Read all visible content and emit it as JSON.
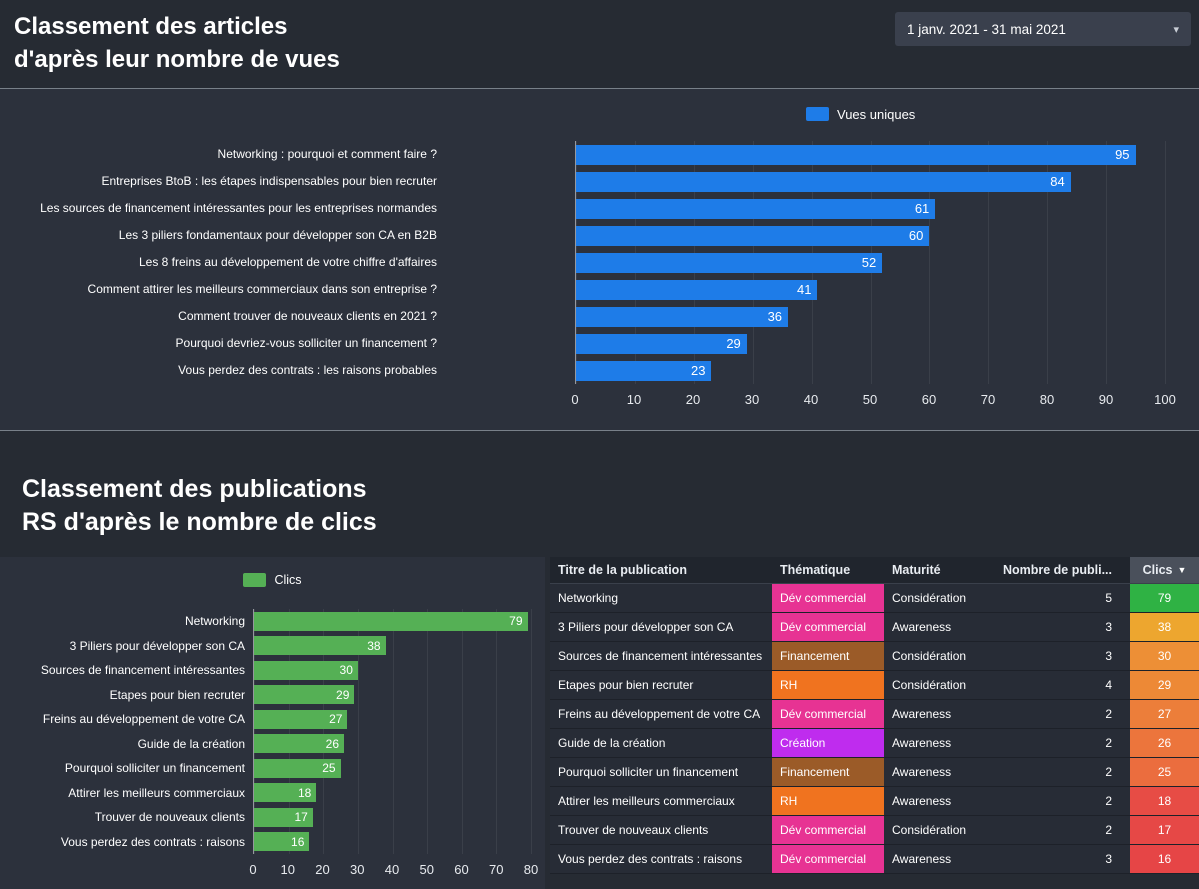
{
  "page": {
    "title_section1_line1": "Classement des articles",
    "title_section1_line2": "d'après leur nombre de vues",
    "title_section2_line1": "Classement des publications",
    "title_section2_line2": "RS d'après le nombre de clics",
    "date_range": "1 janv. 2021 - 31 mai 2021"
  },
  "colors": {
    "page_bg": "#262b33",
    "panel_bg": "#2c313c",
    "blue": "#1e7ce8",
    "green": "#55b055"
  },
  "chart_data": [
    {
      "type": "bar",
      "orientation": "horizontal",
      "title": "Classement des articles d'après leur nombre de vues",
      "legend": "Vues uniques",
      "legend_position": "top",
      "color": "#1e7ce8",
      "grid": true,
      "categories": [
        "Networking : pourquoi et comment faire ?",
        "Entreprises BtoB : les étapes indispensables pour bien recruter",
        "Les sources de financement intéressantes pour les entreprises normandes",
        "Les 3 piliers fondamentaux pour développer son CA en B2B",
        "Les 8 freins au développement de votre chiffre d'affaires",
        "Comment attirer les meilleurs commerciaux dans son entreprise ?",
        "Comment trouver de nouveaux clients en 2021 ?",
        "Pourquoi devriez-vous solliciter un financement ?",
        "Vous perdez des contrats : les raisons probables"
      ],
      "values": [
        95,
        84,
        61,
        60,
        52,
        41,
        36,
        29,
        23
      ],
      "xlim": [
        0,
        100
      ],
      "xticks": [
        0,
        10,
        20,
        30,
        40,
        50,
        60,
        70,
        80,
        90,
        100
      ]
    },
    {
      "type": "bar",
      "orientation": "horizontal",
      "title": "Classement des publications RS d'après le nombre de clics",
      "legend": "Clics",
      "legend_position": "top",
      "color": "#55b055",
      "grid": true,
      "categories": [
        "Networking",
        "3 Piliers pour développer son CA",
        "Sources de financement intéressantes",
        "Etapes pour bien recruter",
        "Freins au développement de votre CA",
        "Guide de la création",
        "Pourquoi solliciter un financement",
        "Attirer les meilleurs commerciaux",
        "Trouver de nouveaux clients",
        "Vous perdez des contrats : raisons"
      ],
      "values": [
        79,
        38,
        30,
        29,
        27,
        26,
        25,
        18,
        17,
        16
      ],
      "xlim": [
        0,
        80
      ],
      "xticks": [
        0,
        10,
        20,
        30,
        40,
        50,
        60,
        70,
        80
      ]
    },
    {
      "type": "table",
      "columns": [
        "Titre de la publication",
        "Thématique",
        "Maturité",
        "Nombre de publi...",
        "Clics"
      ],
      "sorted_by": "Clics",
      "sort_direction": "desc",
      "rows": [
        {
          "titre": "Networking",
          "thematique": "Dév commercial",
          "thematique_color": "#e73393",
          "maturite": "Considération",
          "publications": 5,
          "clics": 79,
          "clics_color": "#2fb244"
        },
        {
          "titre": "3 Piliers pour développer son CA",
          "thematique": "Dév commercial",
          "thematique_color": "#e73393",
          "maturite": "Awareness",
          "publications": 3,
          "clics": 38,
          "clics_color": "#eda62f"
        },
        {
          "titre": "Sources de financement intéressantes",
          "thematique": "Financement",
          "thematique_color": "#9b5b28",
          "maturite": "Considération",
          "publications": 3,
          "clics": 30,
          "clics_color": "#ed8f36"
        },
        {
          "titre": "Etapes pour bien recruter",
          "thematique": "RH",
          "thematique_color": "#f0731f",
          "maturite": "Considération",
          "publications": 4,
          "clics": 29,
          "clics_color": "#ed8936"
        },
        {
          "titre": "Freins au développement de votre CA",
          "thematique": "Dév commercial",
          "thematique_color": "#e73393",
          "maturite": "Awareness",
          "publications": 2,
          "clics": 27,
          "clics_color": "#ec7e3a"
        },
        {
          "titre": "Guide de la création",
          "thematique": "Création",
          "thematique_color": "#bf2cee",
          "maturite": "Awareness",
          "publications": 2,
          "clics": 26,
          "clics_color": "#ec753c"
        },
        {
          "titre": "Pourquoi solliciter un financement",
          "thematique": "Financement",
          "thematique_color": "#9b5b28",
          "maturite": "Awareness",
          "publications": 2,
          "clics": 25,
          "clics_color": "#eb6d3e"
        },
        {
          "titre": "Attirer les meilleurs commerciaux",
          "thematique": "RH",
          "thematique_color": "#f0731f",
          "maturite": "Awareness",
          "publications": 2,
          "clics": 18,
          "clics_color": "#e74c45"
        },
        {
          "titre": "Trouver de nouveaux clients",
          "thematique": "Dév commercial",
          "thematique_color": "#e73393",
          "maturite": "Considération",
          "publications": 2,
          "clics": 17,
          "clics_color": "#e64846"
        },
        {
          "titre": "Vous perdez des contrats : raisons",
          "thematique": "Dév commercial",
          "thematique_color": "#e73393",
          "maturite": "Awareness",
          "publications": 3,
          "clics": 16,
          "clics_color": "#e64546"
        }
      ]
    }
  ]
}
